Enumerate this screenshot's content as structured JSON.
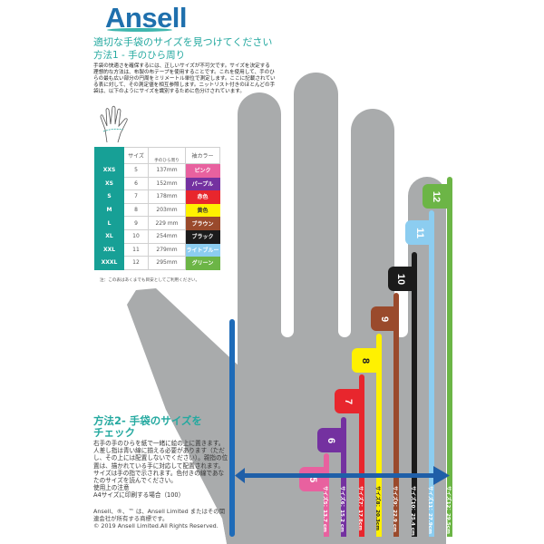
{
  "brand": {
    "logo_text": "Ansell",
    "brand_color": "#1f70ad",
    "accent_color": "#25a9a0"
  },
  "header": {
    "title": "適切な手袋のサイズを見つけてください",
    "method1_title": "方法1 -  手のひら周り",
    "intro_lines": [
      "手袋の快適さを確保するには、正しいサイズが不可欠です。サイズを決定する",
      "理想的な方法は、布製の布テープを使用することです。これを使用して、手のひ",
      "らの最も広い部分の円周をミリメートル単位で測定します。ここに記載されてい",
      "る表に対して、その測定値を相互参照します。ニットリスト付きのほとんどの手",
      "袋は、以下のようにサイズを識別するために色分けされています。"
    ]
  },
  "table": {
    "headers": {
      "size": "サイズ",
      "palm": "手のひら周り",
      "cuff": "袖カラー"
    },
    "rows": [
      {
        "letter": "XXS",
        "size": "5",
        "mm": "137mm",
        "cuff": "ピンク",
        "color": "#e8619f",
        "text_color": "#fff"
      },
      {
        "letter": "XS",
        "size": "6",
        "mm": "152mm",
        "cuff": "パープル",
        "color": "#7431a0",
        "text_color": "#fff"
      },
      {
        "letter": "S",
        "size": "7",
        "mm": "178mm",
        "cuff": "赤色",
        "color": "#e8262d",
        "text_color": "#fff"
      },
      {
        "letter": "M",
        "size": "8",
        "mm": "203mm",
        "cuff": "黄色",
        "color": "#fff100",
        "text_color": "#333"
      },
      {
        "letter": "L",
        "size": "9",
        "mm": "229 mm",
        "cuff": "ブラウン",
        "color": "#9a4a2c",
        "text_color": "#fff"
      },
      {
        "letter": "XL",
        "size": "10",
        "mm": "254mm",
        "cuff": "ブラック",
        "color": "#1b1b1b",
        "text_color": "#fff"
      },
      {
        "letter": "XXL",
        "size": "11",
        "mm": "279mm",
        "cuff": "ライトブルー",
        "color": "#8ccdf0",
        "text_color": "#fff"
      },
      {
        "letter": "XXXL",
        "size": "12",
        "mm": "295mm",
        "cuff": "グリーン",
        "color": "#6cb546",
        "text_color": "#fff"
      }
    ],
    "note": "注：この表はあくまでも目安としてご利用ください。"
  },
  "bars": [
    {
      "tab": "5",
      "label": "サイズ5：13.7 cm",
      "color": "#e8619f",
      "text_color": "#fff"
    },
    {
      "tab": "6",
      "label": "サイズ6：15.2 cm",
      "color": "#7431a0",
      "text_color": "#fff"
    },
    {
      "tab": "7",
      "label": "サイズ7：17.8cm",
      "color": "#e8262d",
      "text_color": "#fff"
    },
    {
      "tab": "8",
      "label": "サイズ8：20.3cm",
      "color": "#fff100",
      "text_color": "#222"
    },
    {
      "tab": "9",
      "label": "サイズ9：22.9 cm",
      "color": "#9a4a2c",
      "text_color": "#fff"
    },
    {
      "tab": "10",
      "label": "サイズ10：25.4 cm",
      "color": "#1b1b1b",
      "text_color": "#fff"
    },
    {
      "tab": "11",
      "label": "サイズ11：27.9cm",
      "color": "#8ccdf0",
      "text_color": "#fff"
    },
    {
      "tab": "12",
      "label": "サイズ12：29.5cm",
      "color": "#6cb546",
      "text_color": "#fff"
    }
  ],
  "index_line_color": "#1e6bb8",
  "arrow_color": "#1f5fa8",
  "hand_color": "#a9abac",
  "method2": {
    "title_line1": "方法2- 手袋のサイズを",
    "title_line2": "チェック",
    "body": "右手の手のひらを紙で一緒に絵の上に置きます。人差し指は青い線に揃える必要があります（ただし、その上には配置しないでください）。親指の位置は、描かれている手に対応して配置されます。サイズは手の指で示されます。色付きの線であなたのサイズを読んでください。",
    "usage_title": "使用上の注意",
    "usage_note": "A4サイズに印刷する場合（100）"
  },
  "legal": {
    "trademark": "Ansell、®、™ は、Ansell Limited またはその関連会社が所有する商標です。",
    "copyright": "© 2019 Ansell Limited.All Rights Reserved."
  }
}
